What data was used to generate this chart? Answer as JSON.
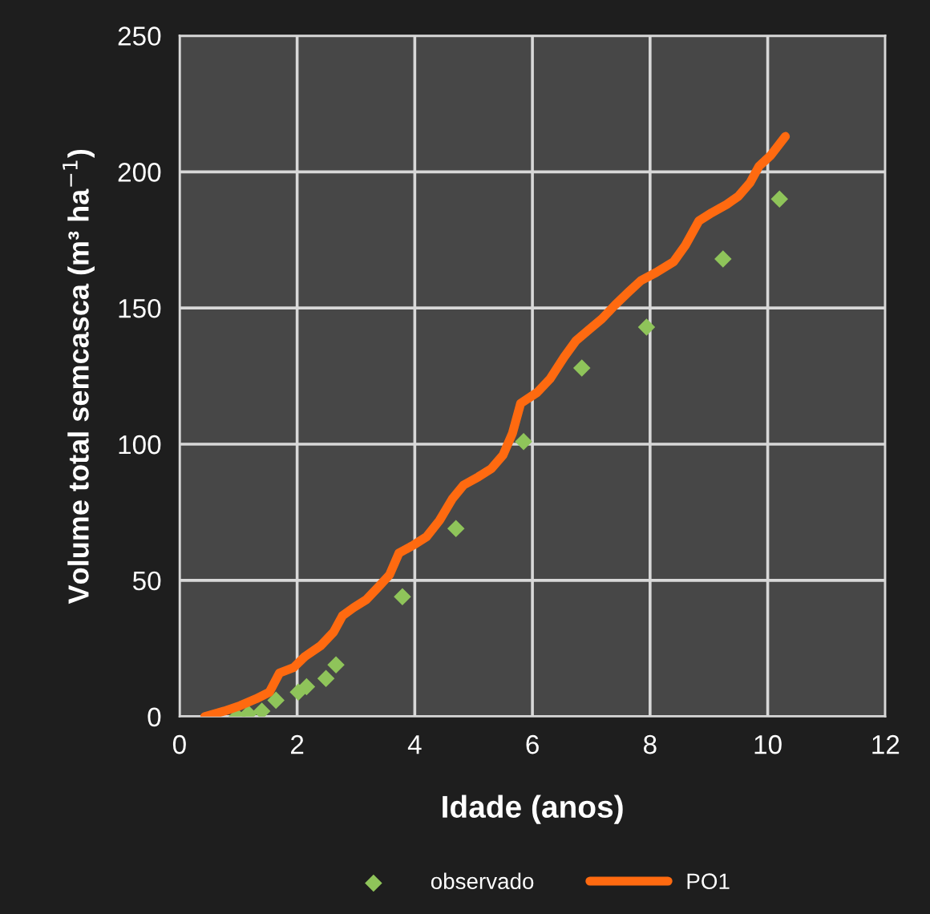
{
  "chart_data": {
    "type": "line",
    "xlabel": "Idade (anos)",
    "ylabel": "Volume total semcasca (m³ ha$^{−1}$)",
    "xlim": [
      0,
      12
    ],
    "ylim": [
      0,
      250
    ],
    "xticks": [
      0,
      2,
      4,
      6,
      8,
      10,
      12
    ],
    "yticks": [
      0,
      50,
      100,
      150,
      200,
      250
    ],
    "grid": true,
    "legend": "bottom",
    "series": [
      {
        "name": "observado",
        "type": "scatter",
        "marker": "diamond",
        "color": "#8fc45a",
        "x": [
          0.98,
          1.17,
          1.4,
          1.64,
          2.02,
          2.16,
          2.49,
          2.66,
          3.79,
          4.7,
          5.85,
          6.84,
          7.94,
          9.24,
          10.2
        ],
        "values": [
          0,
          1,
          2,
          6,
          9,
          11,
          14,
          19,
          44,
          69,
          101,
          128,
          143,
          168,
          190
        ]
      },
      {
        "name": "PO1",
        "marker": "none",
        "color": "#ff6a10",
        "x": [
          0.43,
          0.76,
          1.03,
          1.3,
          1.53,
          1.7,
          1.94,
          2.13,
          2.4,
          2.62,
          2.77,
          2.96,
          3.18,
          3.4,
          3.57,
          3.73,
          3.98,
          4.2,
          4.42,
          4.64,
          4.83,
          5.08,
          5.3,
          5.5,
          5.66,
          5.8,
          6.08,
          6.3,
          6.54,
          6.74,
          6.96,
          7.18,
          7.4,
          7.64,
          7.84,
          8.1,
          8.4,
          8.6,
          8.83,
          9.05,
          9.3,
          9.5,
          9.7,
          9.85,
          10.05,
          10.3
        ],
        "values": [
          0,
          2,
          4,
          6.5,
          9,
          16,
          18,
          22,
          26,
          31,
          37,
          40,
          43,
          48,
          52,
          60,
          63,
          66,
          72,
          80,
          85,
          88,
          91,
          96,
          104,
          115,
          119,
          124,
          132,
          138,
          142,
          146,
          151,
          156,
          160,
          163,
          167,
          173,
          182,
          185,
          188,
          191,
          196,
          202,
          206,
          213
        ]
      }
    ]
  }
}
